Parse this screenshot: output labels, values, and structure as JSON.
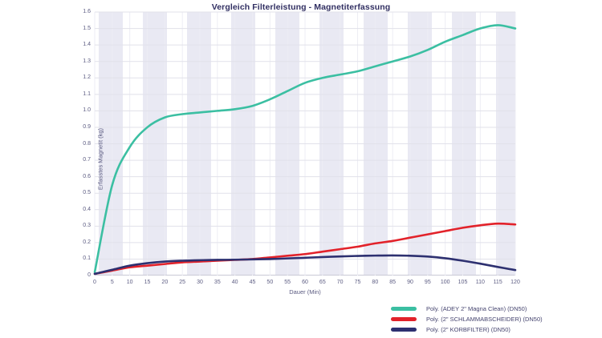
{
  "chart_data": {
    "type": "line",
    "title": "Vergleich Filterleistung - Magnetiterfassung",
    "xlabel": "Dauer (Min)",
    "ylabel": "Erfasstes Magnetit (kg)",
    "xlim": [
      0,
      120
    ],
    "ylim": [
      0,
      1.6
    ],
    "grid": true,
    "background_bands": "vertical alternating light stripes",
    "legend_position": "bottom-right",
    "x": [
      0,
      5,
      10,
      15,
      20,
      25,
      30,
      35,
      40,
      45,
      50,
      55,
      60,
      65,
      70,
      75,
      80,
      85,
      90,
      95,
      100,
      105,
      110,
      115,
      120
    ],
    "x_tick_labels": [
      "0",
      "5",
      "10",
      "15",
      "20",
      "25",
      "30",
      "35",
      "40",
      "45",
      "50",
      "55",
      "60",
      "65",
      "70",
      "75",
      "80",
      "85",
      "90",
      "95",
      "100",
      "105",
      "110",
      "115",
      "120"
    ],
    "y_ticks": [
      0,
      0.1,
      0.2,
      0.3,
      0.4,
      0.5,
      0.6,
      0.7,
      0.8,
      0.9,
      1.0,
      1.1,
      1.2,
      1.3,
      1.4,
      1.5,
      1.6
    ],
    "y_tick_labels": [
      "0",
      "0.1",
      "0.2",
      "0.3",
      "0.4",
      "0.5",
      "0.6",
      "0.7",
      "0.8",
      "0.9",
      "1.0",
      "1.1",
      "1.2",
      "1.3",
      "1.4",
      "1.5",
      "1.6"
    ],
    "series": [
      {
        "name": "Poly. (ADEY 2\" Magna Clean) (DN50)",
        "color": "#3bbfa2",
        "values": [
          0.02,
          0.55,
          0.78,
          0.9,
          0.96,
          0.98,
          0.99,
          1.0,
          1.01,
          1.03,
          1.07,
          1.12,
          1.17,
          1.2,
          1.22,
          1.24,
          1.27,
          1.3,
          1.33,
          1.37,
          1.42,
          1.46,
          1.5,
          1.52,
          1.5
        ]
      },
      {
        "name": "Poly. (2\" SCHLAMMABSCHEIDER) (DN50)",
        "color": "#e2222a",
        "values": [
          0.01,
          0.03,
          0.05,
          0.06,
          0.07,
          0.08,
          0.085,
          0.09,
          0.095,
          0.1,
          0.11,
          0.12,
          0.13,
          0.145,
          0.16,
          0.175,
          0.195,
          0.21,
          0.23,
          0.25,
          0.27,
          0.29,
          0.305,
          0.315,
          0.31
        ]
      },
      {
        "name": "Poly. (2\" KORBFILTER) (DN50)",
        "color": "#2d3070",
        "values": [
          0.01,
          0.035,
          0.06,
          0.075,
          0.085,
          0.09,
          0.093,
          0.095,
          0.096,
          0.098,
          0.1,
          0.104,
          0.108,
          0.112,
          0.116,
          0.119,
          0.121,
          0.122,
          0.12,
          0.115,
          0.105,
          0.09,
          0.072,
          0.052,
          0.033
        ]
      }
    ],
    "colors": {
      "band": "#e9e9f3",
      "h_gridline": "#e1e1ea",
      "v_gridline": "#ededf4",
      "axis_line": "#c9c9d6",
      "tick_text": "#5c5c82",
      "title_text": "#312f62"
    }
  }
}
